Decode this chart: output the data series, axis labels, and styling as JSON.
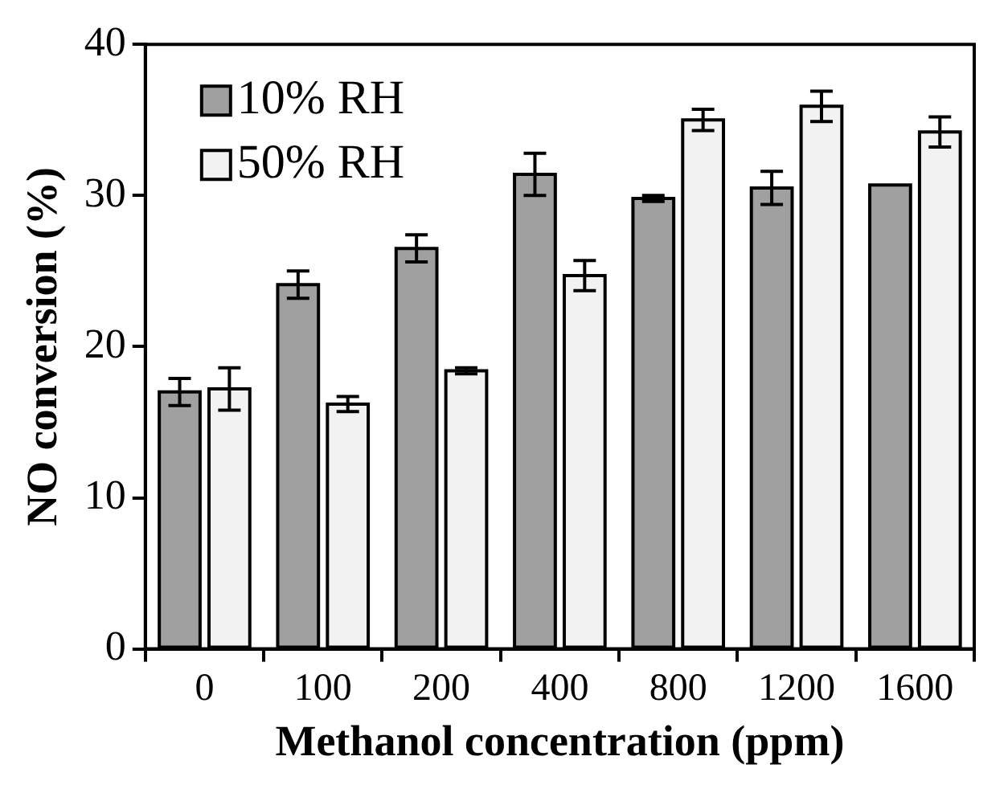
{
  "chart_data": {
    "type": "bar",
    "xlabel": "Methanol concentration (ppm)",
    "ylabel": "NO conversion (%)",
    "categories": [
      "0",
      "100",
      "200",
      "400",
      "800",
      "1200",
      "1600"
    ],
    "series": [
      {
        "name": "10% RH",
        "color": "#a0a0a0",
        "values": [
          17.0,
          24.1,
          26.5,
          31.4,
          29.8,
          30.5,
          30.7
        ],
        "errors": [
          0.9,
          0.9,
          0.9,
          1.4,
          0.2,
          1.1,
          null
        ]
      },
      {
        "name": "50% RH",
        "color": "#f2f2f2",
        "values": [
          17.2,
          16.2,
          18.4,
          24.7,
          35.0,
          35.9,
          34.2
        ],
        "errors": [
          1.4,
          0.5,
          0.2,
          1.0,
          0.7,
          1.0,
          1.0
        ]
      }
    ],
    "ylim": [
      0,
      40
    ],
    "yticks": [
      0,
      10,
      20,
      30,
      40
    ],
    "legend": "top left"
  }
}
